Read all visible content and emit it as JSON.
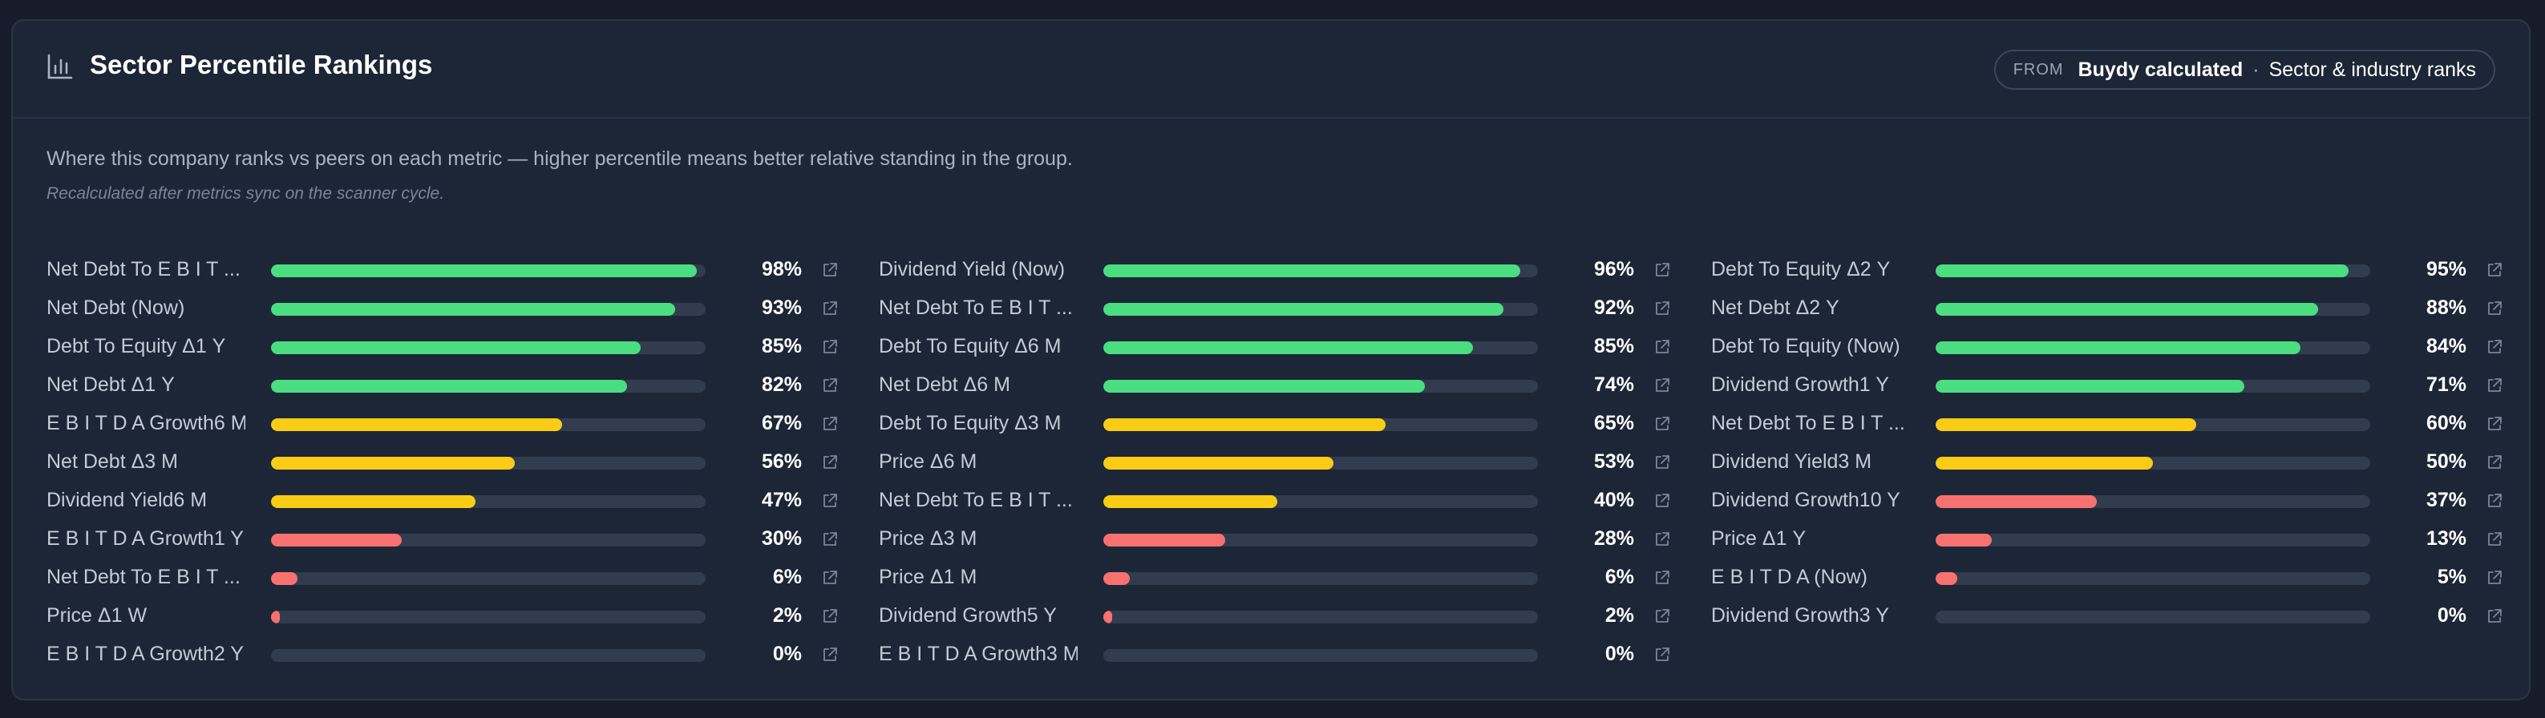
{
  "card": {
    "title": "Sector Percentile Rankings",
    "icon": "bar-chart-icon",
    "source": {
      "from_label": "FROM",
      "primary": "Buydy calculated",
      "separator": "·",
      "secondary": "Sector & industry ranks"
    },
    "description": "Where this company ranks vs peers on each metric — higher percentile means better relative standing in the group.",
    "note": "Recalculated after metrics sync on the scanner cycle."
  },
  "colors": {
    "high": "#4ade80",
    "mid": "#facc15",
    "low": "#f87171",
    "track": "#313c4f"
  },
  "columns": [
    {
      "rows": [
        {
          "label": "Net Debt To E B I T ...",
          "percentile": 98,
          "value": "98%"
        },
        {
          "label": "Net Debt (Now)",
          "percentile": 93,
          "value": "93%"
        },
        {
          "label": "Debt To Equity Δ1 Y",
          "percentile": 85,
          "value": "85%"
        },
        {
          "label": "Net Debt Δ1 Y",
          "percentile": 82,
          "value": "82%"
        },
        {
          "label": "E B I T D A Growth6 M",
          "percentile": 67,
          "value": "67%"
        },
        {
          "label": "Net Debt Δ3 M",
          "percentile": 56,
          "value": "56%"
        },
        {
          "label": "Dividend Yield6 M",
          "percentile": 47,
          "value": "47%"
        },
        {
          "label": "E B I T D A Growth1 Y",
          "percentile": 30,
          "value": "30%"
        },
        {
          "label": "Net Debt To E B I T ...",
          "percentile": 6,
          "value": "6%"
        },
        {
          "label": "Price Δ1 W",
          "percentile": 2,
          "value": "2%"
        },
        {
          "label": "E B I T D A Growth2 Y",
          "percentile": 0,
          "value": "0%"
        }
      ]
    },
    {
      "rows": [
        {
          "label": "Dividend Yield (Now)",
          "percentile": 96,
          "value": "96%"
        },
        {
          "label": "Net Debt To E B I T ...",
          "percentile": 92,
          "value": "92%"
        },
        {
          "label": "Debt To Equity Δ6 M",
          "percentile": 85,
          "value": "85%"
        },
        {
          "label": "Net Debt Δ6 M",
          "percentile": 74,
          "value": "74%"
        },
        {
          "label": "Debt To Equity Δ3 M",
          "percentile": 65,
          "value": "65%"
        },
        {
          "label": "Price Δ6 M",
          "percentile": 53,
          "value": "53%"
        },
        {
          "label": "Net Debt To E B I T ...",
          "percentile": 40,
          "value": "40%"
        },
        {
          "label": "Price Δ3 M",
          "percentile": 28,
          "value": "28%"
        },
        {
          "label": "Price Δ1 M",
          "percentile": 6,
          "value": "6%"
        },
        {
          "label": "Dividend Growth5 Y",
          "percentile": 2,
          "value": "2%"
        },
        {
          "label": "E B I T D A Growth3 M",
          "percentile": 0,
          "value": "0%"
        }
      ]
    },
    {
      "rows": [
        {
          "label": "Debt To Equity Δ2 Y",
          "percentile": 95,
          "value": "95%"
        },
        {
          "label": "Net Debt Δ2 Y",
          "percentile": 88,
          "value": "88%"
        },
        {
          "label": "Debt To Equity (Now)",
          "percentile": 84,
          "value": "84%"
        },
        {
          "label": "Dividend Growth1 Y",
          "percentile": 71,
          "value": "71%"
        },
        {
          "label": "Net Debt To E B I T ...",
          "percentile": 60,
          "value": "60%"
        },
        {
          "label": "Dividend Yield3 M",
          "percentile": 50,
          "value": "50%"
        },
        {
          "label": "Dividend Growth10 Y",
          "percentile": 37,
          "value": "37%"
        },
        {
          "label": "Price Δ1 Y",
          "percentile": 13,
          "value": "13%"
        },
        {
          "label": "E B I T D A (Now)",
          "percentile": 5,
          "value": "5%"
        },
        {
          "label": "Dividend Growth3 Y",
          "percentile": 0,
          "value": "0%"
        }
      ]
    }
  ]
}
